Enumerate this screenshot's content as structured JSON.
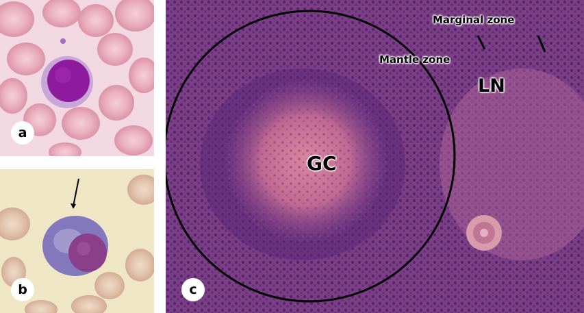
{
  "panels": [
    {
      "letter": "a",
      "subject": "small lymphocyte in blood smear"
    },
    {
      "letter": "b",
      "subject": "plasma cell with arrow"
    },
    {
      "letter": "c",
      "subject": "lymph node follicle histology"
    }
  ],
  "labels": {
    "marginal_zone": "Marginal zone",
    "mantle_zone": "Mantle zone",
    "lymph_node": "LN",
    "germinal_center": "GC"
  },
  "colors": {
    "smear_a_background": "#f2d8e0",
    "smear_b_background": "#efe6c5",
    "rbc": "#e9a9b8",
    "lymphocyte_nucleus": "#8e1b9e",
    "plasma_cytoplasm": "#7f73b8",
    "tissue_base": "#8a4f8e",
    "follicle_ring": "#000000"
  }
}
